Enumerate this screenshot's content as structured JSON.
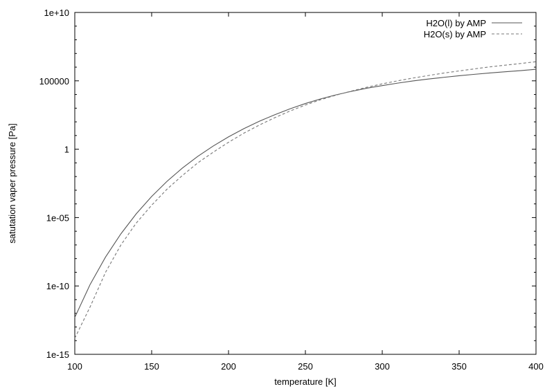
{
  "chart_data": {
    "type": "line",
    "title": "",
    "xlabel": "temperature [K]",
    "ylabel": "satutation vaper pressure [Pa]",
    "xlim": [
      100,
      400
    ],
    "ylim": [
      1e-15,
      10000000000.0
    ],
    "yscale": "log",
    "xticks": [
      100,
      150,
      200,
      250,
      300,
      350,
      400
    ],
    "xtick_labels": [
      "100",
      "150",
      "200",
      "250",
      "300",
      "350",
      "400"
    ],
    "yticks": [
      1e-15,
      1e-10,
      1e-05,
      1,
      100000,
      10000000000.0
    ],
    "ytick_labels": [
      "1e-15",
      "1e-10",
      "1e-05",
      "1",
      "100000",
      "1e+10"
    ],
    "grid": false,
    "legend_position": "top-right",
    "series": [
      {
        "name": "H2O(l) by AMP",
        "style": "solid",
        "color": "#555555",
        "x": [
          100,
          110,
          120,
          130,
          140,
          150,
          160,
          170,
          180,
          190,
          200,
          210,
          220,
          230,
          240,
          250,
          260,
          270,
          280,
          290,
          300,
          310,
          320,
          330,
          340,
          350,
          360,
          370,
          380,
          390,
          400
        ],
        "y": [
          5e-13,
          1.3e-10,
          1.3e-08,
          6.5e-07,
          1.9e-05,
          0.00035,
          0.0045,
          0.042,
          0.3,
          1.7,
          8.0,
          32,
          110,
          330,
          900,
          2200,
          4800,
          9500,
          17000,
          29000,
          45000,
          68000,
          98000,
          135000,
          180000,
          235000,
          300000,
          375000,
          460000,
          560000,
          700000
        ]
      },
      {
        "name": "H2O(s) by AMP",
        "style": "dashed",
        "color": "#777777",
        "x": [
          100,
          110,
          120,
          130,
          140,
          150,
          160,
          170,
          180,
          190,
          200,
          210,
          220,
          230,
          240,
          250,
          260,
          270,
          280,
          290,
          300,
          310,
          320,
          330,
          340,
          350,
          360,
          370,
          380,
          390,
          400
        ],
        "y": [
          1.5e-14,
          3e-12,
          1e-09,
          1e-07,
          4e-06,
          8e-05,
          0.0012,
          0.012,
          0.1,
          0.6,
          3.2,
          15,
          58,
          200,
          620,
          1700,
          4200,
          9000,
          18000,
          34000,
          60000,
          100000,
          160000,
          245000,
          370000,
          530000,
          750000,
          1050000,
          1400000,
          1850000,
          2500000
        ]
      }
    ]
  }
}
